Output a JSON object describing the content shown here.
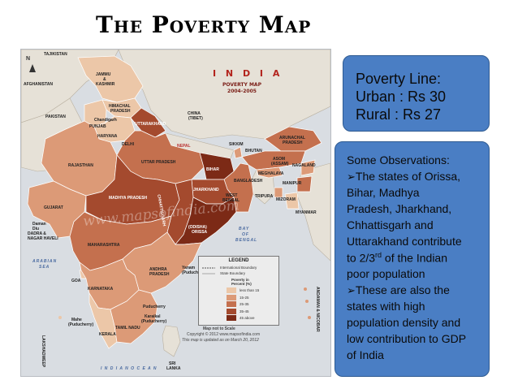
{
  "slide": {
    "title": "The Poverty Map"
  },
  "map": {
    "header": "I N D I A",
    "subtitle_1": "POVERTY MAP",
    "subtitle_2": "2004-2005",
    "watermark": "www.mapsofindia.com",
    "north": "N",
    "labels": {
      "tajikistan": "TAJIKISTAN",
      "afghanistan": "AFGHANISTAN",
      "jammu": "JAMMU",
      "amp": "&",
      "kashmir": "KASHMIR",
      "pakistan": "PAKISTAN",
      "himachal_1": "HIMACHAL",
      "himachal_2": "PRADESH",
      "chandigarh": "Chandigarh",
      "punjab": "PUNJAB",
      "uttarakhand": "UTTARAKHAND",
      "haryana": "HARYANA",
      "delhi": "DELHI",
      "china_1": "CHINA",
      "china_2": "(TIBET)",
      "nepal": "NEPAL",
      "sikkim": "SIKKIM",
      "bhutan": "BHUTAN",
      "arunachal_1": "ARUNACHAL",
      "arunachal_2": "PRADESH",
      "asom_1": "ASOM",
      "asom_2": "(ASSAM)",
      "nagaland": "NAGALAND",
      "meghalaya": "MEGHALAYA",
      "bangladesh": "BANGLADESH",
      "manipur": "MANIPUR",
      "tripura": "TRIPURA",
      "mizoram": "MIZORAM",
      "myanmar": "MYANMAR",
      "rajasthan": "RAJASTHAN",
      "uttar_pradesh": "UTTAR PRADESH",
      "bihar": "BIHAR",
      "jharkhand": "JHARKHAND",
      "west_1": "WEST",
      "west_2": "BENGAL",
      "gujarat": "GUJARAT",
      "madhya_pradesh": "MADHYA PRADESH",
      "chhattisgarh": "CHHATTISGARH",
      "odisha_1": "(ODISHA)",
      "odisha_2": "ORISSA",
      "daman": "Daman",
      "diu": "Diu",
      "dadra_1": "DADRA &",
      "dadra_2": "NAGAR HAVELI",
      "maharashtra": "MAHARASHTRA",
      "bay_1": "BAY",
      "bay_2": "OF",
      "bay_3": "BENGAL",
      "arabian_1": "ARABIAN",
      "arabian_2": "SEA",
      "goa": "GOA",
      "karnataka": "KARNATAKA",
      "andhra_1": "ANDHRA",
      "andhra_2": "PRADESH",
      "yanam_1": "Yanam",
      "yanam_2": "(Puducherry)",
      "mahe_1": "Mahe",
      "mahe_2": "(Puducherry)",
      "puducherry": "Puducherry",
      "tamil_nadu": "TAMIL NADU",
      "karaikal_1": "Karaikal",
      "karaikal_2": "(Puducherry)",
      "kerala": "KERALA",
      "lakshadweep": "LAKSHADWEEP",
      "sri_1": "SRI",
      "sri_2": "LANKA",
      "indian_ocean": "I  N  D  I  A  N           O  C  E  A  N",
      "andaman": "ANDAMAN & NICOBAR"
    },
    "legend": {
      "title": "LEGEND",
      "intl_boundary": "International Boundary",
      "state_boundary": "State Boundary",
      "heading_1": "Poverty in",
      "heading_2": "Percent (%)",
      "classes": [
        {
          "label": "less than 15",
          "color": "#ecc7a8"
        },
        {
          "label": "15-25",
          "color": "#dc9a77"
        },
        {
          "label": "25-35",
          "color": "#c4704e"
        },
        {
          "label": "35-45",
          "color": "#a44a2e"
        },
        {
          "label": "45 above",
          "color": "#7c2a16"
        }
      ]
    },
    "footer": {
      "scale": "Map not to Scale",
      "copyright": "Copyright © 2012  www.mapsofindia.com",
      "updated": "This map is updated as on March 20, 2012"
    }
  },
  "poverty_line": {
    "heading": "Poverty Line:",
    "urban": "Urban : Rs 30",
    "rural": "Rural : Rs 27"
  },
  "observations": {
    "heading": "Some Observations:",
    "arrow": "➢",
    "p1_l1": "The states of Orissa,",
    "p1_l2": "Bihar,  Madhya",
    "p1_l3": "Pradesh, Jharkhand,",
    "p1_l4": "Chhattisgarh and",
    "p1_l5": "Uttarakhand contribute",
    "p1_l6_a": "to 2/3",
    "p1_l6_sup": "rd",
    "p1_l6_b": " of the Indian",
    "p1_l7": "poor population",
    "p2_l1": "These are also the",
    "p2_l2": "states with high",
    "p2_l3": "population density and",
    "p2_l4": "low contribution to GDP",
    "p2_l5": "of India"
  },
  "colors": {
    "box_fill": "#4a7ec4",
    "box_border": "#2e5a91"
  }
}
